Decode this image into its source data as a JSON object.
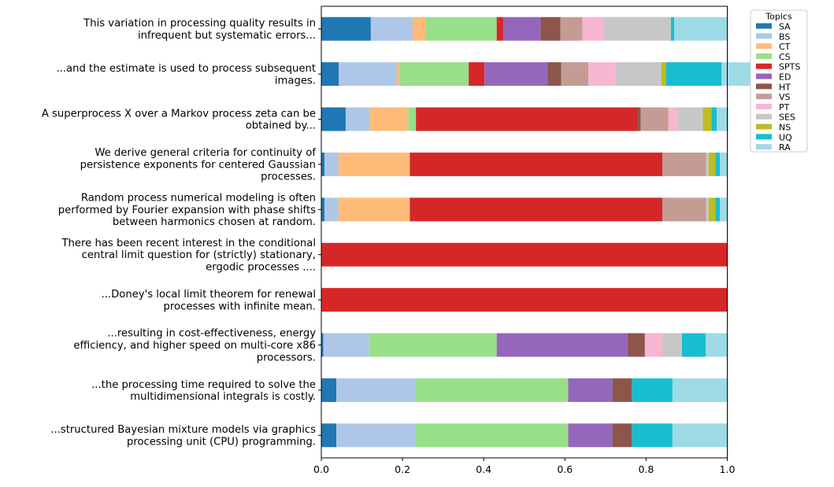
{
  "chart_data": {
    "type": "bar",
    "orientation": "horizontal-stacked",
    "xlim": [
      0.0,
      1.0
    ],
    "xticks": [
      "0.0",
      "0.2",
      "0.4",
      "0.6",
      "0.8",
      "1.0"
    ],
    "legend": {
      "title": "Topics",
      "placement": "top-right outside",
      "entries": [
        "SA",
        "BS",
        "CT",
        "CS",
        "SPTS",
        "ED",
        "HT",
        "VS",
        "PT",
        "SES",
        "NS",
        "UQ",
        "RA"
      ]
    },
    "colors": [
      "#1f77b4",
      "#aec7e8",
      "#ffbb78",
      "#98df8a",
      "#d62728",
      "#9467bd",
      "#8c564b",
      "#c49c94",
      "#f7b6d2",
      "#c7c7c7",
      "#bcbd22",
      "#17becf",
      "#9edae5"
    ],
    "categories": [
      [
        "This variation in processing quality results in",
        "infrequent but systematic errors..."
      ],
      [
        "...and the estimate is used to process subsequent",
        "images."
      ],
      [
        "A superprocess X over a Markov process zeta can be",
        "obtained by..."
      ],
      [
        "We derive general criteria for continuity of",
        "persistence exponents for centered Gaussian",
        "processes."
      ],
      [
        "Random process numerical modeling is often",
        "performed by Fourier  expansion with phase shifts",
        "between harmonics chosen at random."
      ],
      [
        "There has been recent interest in the conditional",
        "central limit question for (strictly) stationary,",
        "ergodic processes ...."
      ],
      [
        "...Doney's local limit theorem for renewal",
        "processes with infinite mean."
      ],
      [
        "...resulting in cost-effectiveness, energy",
        "efficiency, and higher speed on multi-core x86",
        "processors."
      ],
      [
        "...the processing time required to solve the",
        "multidimensional integrals is costly."
      ],
      [
        "...structured Bayesian mixture models via graphics",
        "processing unit (CPU) programming."
      ]
    ],
    "values": [
      [
        0.122,
        0.103,
        0.032,
        0.175,
        0.016,
        0.092,
        0.049,
        0.054,
        0.052,
        0.166,
        0.0,
        0.008,
        0.131
      ],
      [
        0.043,
        0.143,
        0.007,
        0.17,
        0.039,
        0.155,
        0.034,
        0.067,
        0.067,
        0.113,
        0.011,
        0.137,
        0.076
      ],
      [
        0.06,
        0.059,
        0.095,
        0.019,
        0.547,
        0.0,
        0.007,
        0.068,
        0.022,
        0.063,
        0.021,
        0.013,
        0.029
      ],
      [
        0.008,
        0.034,
        0.176,
        0.0,
        0.622,
        0.0,
        0.0,
        0.108,
        0.0,
        0.006,
        0.017,
        0.011,
        0.018
      ],
      [
        0.008,
        0.034,
        0.176,
        0.0,
        0.622,
        0.0,
        0.0,
        0.108,
        0.0,
        0.006,
        0.017,
        0.011,
        0.018
      ],
      [
        0.0,
        0.0,
        0.0,
        0.0,
        1.0,
        0.0,
        0.0,
        0.0,
        0.0,
        0.0,
        0.0,
        0.0,
        0.0
      ],
      [
        0.0,
        0.0,
        0.0,
        0.0,
        1.0,
        0.0,
        0.0,
        0.0,
        0.0,
        0.0,
        0.0,
        0.0,
        0.0
      ],
      [
        0.005,
        0.113,
        0.0,
        0.314,
        0.0,
        0.322,
        0.043,
        0.0,
        0.042,
        0.049,
        0.0,
        0.059,
        0.053
      ],
      [
        0.037,
        0.196,
        0.0,
        0.375,
        0.0,
        0.109,
        0.048,
        0.0,
        0.0,
        0.0,
        0.0,
        0.1,
        0.135
      ],
      [
        0.037,
        0.196,
        0.0,
        0.375,
        0.0,
        0.109,
        0.048,
        0.0,
        0.0,
        0.0,
        0.0,
        0.1,
        0.135
      ]
    ]
  }
}
